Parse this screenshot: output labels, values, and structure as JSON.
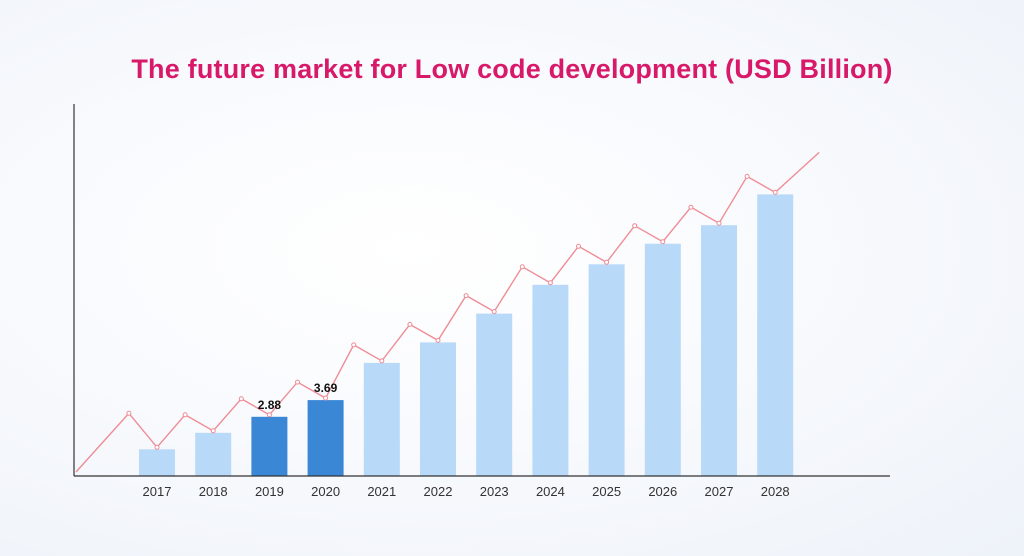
{
  "chart_data": {
    "type": "bar",
    "title": "The future market for Low code development (USD Billion)",
    "xlabel": "",
    "ylabel": "",
    "categories": [
      "2017",
      "2018",
      "2019",
      "2020",
      "2021",
      "2022",
      "2023",
      "2024",
      "2025",
      "2026",
      "2027",
      "2028"
    ],
    "series": [
      {
        "values": [
          1.3,
          2.1,
          2.88,
          3.69,
          5.5,
          6.5,
          7.9,
          9.3,
          10.3,
          11.3,
          12.2,
          13.7
        ]
      }
    ],
    "data_labels": [
      null,
      null,
      "2.88",
      "3.69",
      null,
      null,
      null,
      null,
      null,
      null,
      null,
      null
    ],
    "highlighted_categories": [
      "2019",
      "2020"
    ],
    "trend_line": true,
    "ylim": [
      0,
      18
    ],
    "grid": false,
    "legend": false,
    "colors": {
      "bar": "#b8d9f8",
      "bar_highlight": "#3a87d6",
      "trend_line": "#ef8d96",
      "title": "#d8196a",
      "axis": "#333333"
    }
  }
}
